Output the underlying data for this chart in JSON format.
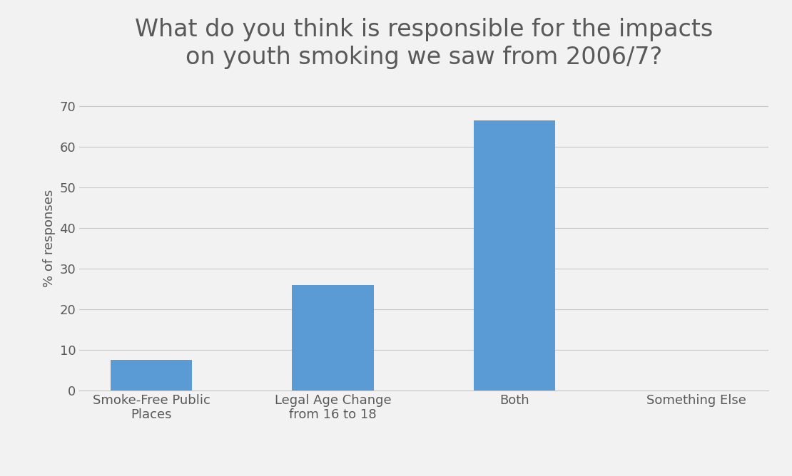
{
  "title": "What do you think is responsible for the impacts\non youth smoking we saw from 2006/7?",
  "categories": [
    "Smoke-Free Public\nPlaces",
    "Legal Age Change\nfrom 16 to 18",
    "Both",
    "Something Else"
  ],
  "values": [
    7.5,
    26.0,
    66.5,
    0.0
  ],
  "bar_color": "#5b9bd5",
  "ylabel": "% of responses",
  "ylim": [
    0,
    75
  ],
  "yticks": [
    0,
    10,
    20,
    30,
    40,
    50,
    60,
    70
  ],
  "title_fontsize": 24,
  "axis_label_fontsize": 13,
  "tick_fontsize": 13,
  "background_color": "#f2f2f2",
  "grid_color": "#c8c8c8",
  "bar_width": 0.45,
  "title_color": "#595959",
  "tick_color": "#595959",
  "ylabel_color": "#595959"
}
